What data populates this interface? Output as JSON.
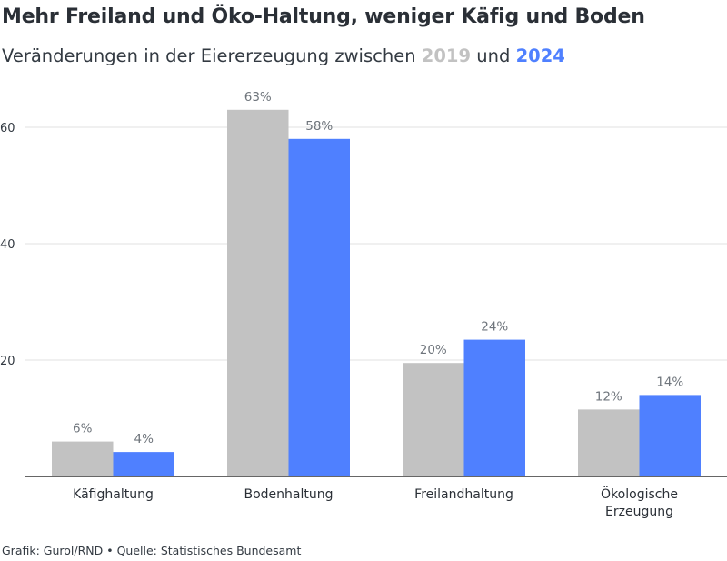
{
  "title": "Mehr Freiland und Öko-Haltung, weniger Käfig und Boden",
  "subtitle": {
    "prefix": "Veränderungen in der Eiererzeugung zwischen",
    "year1": "2019",
    "connector": "und",
    "year2": "2024"
  },
  "footer": "Grafik: Gurol/RND • Quelle: Statistisches Bundesamt",
  "colors": {
    "series_2019": "#c2c2c2",
    "series_2024": "#4f80ff",
    "grid": "#e2e2e2",
    "axis": "#333333"
  },
  "chart_data": {
    "type": "bar",
    "categories": [
      "Käfighaltung",
      "Bodenhaltung",
      "Freilandhaltung",
      "Ökologische Erzeugung"
    ],
    "category_lines": [
      [
        "Käfighaltung"
      ],
      [
        "Bodenhaltung"
      ],
      [
        "Freilandhaltung"
      ],
      [
        "Ökologische",
        "Erzeugung"
      ]
    ],
    "series": [
      {
        "name": "2019",
        "values": [
          6,
          63,
          19.5,
          11.5
        ],
        "labels": [
          "6%",
          "63%",
          "20%",
          "12%"
        ]
      },
      {
        "name": "2024",
        "values": [
          4.2,
          58,
          23.5,
          14
        ],
        "labels": [
          "4%",
          "58%",
          "24%",
          "14%"
        ]
      }
    ],
    "yticks": [
      "20",
      "40",
      "60"
    ],
    "ytick_values": [
      20,
      40,
      60
    ],
    "ylim": [
      0,
      70
    ],
    "grid": true,
    "title": "Mehr Freiland und Öko-Haltung, weniger Käfig und Boden",
    "xlabel": "",
    "ylabel": ""
  }
}
